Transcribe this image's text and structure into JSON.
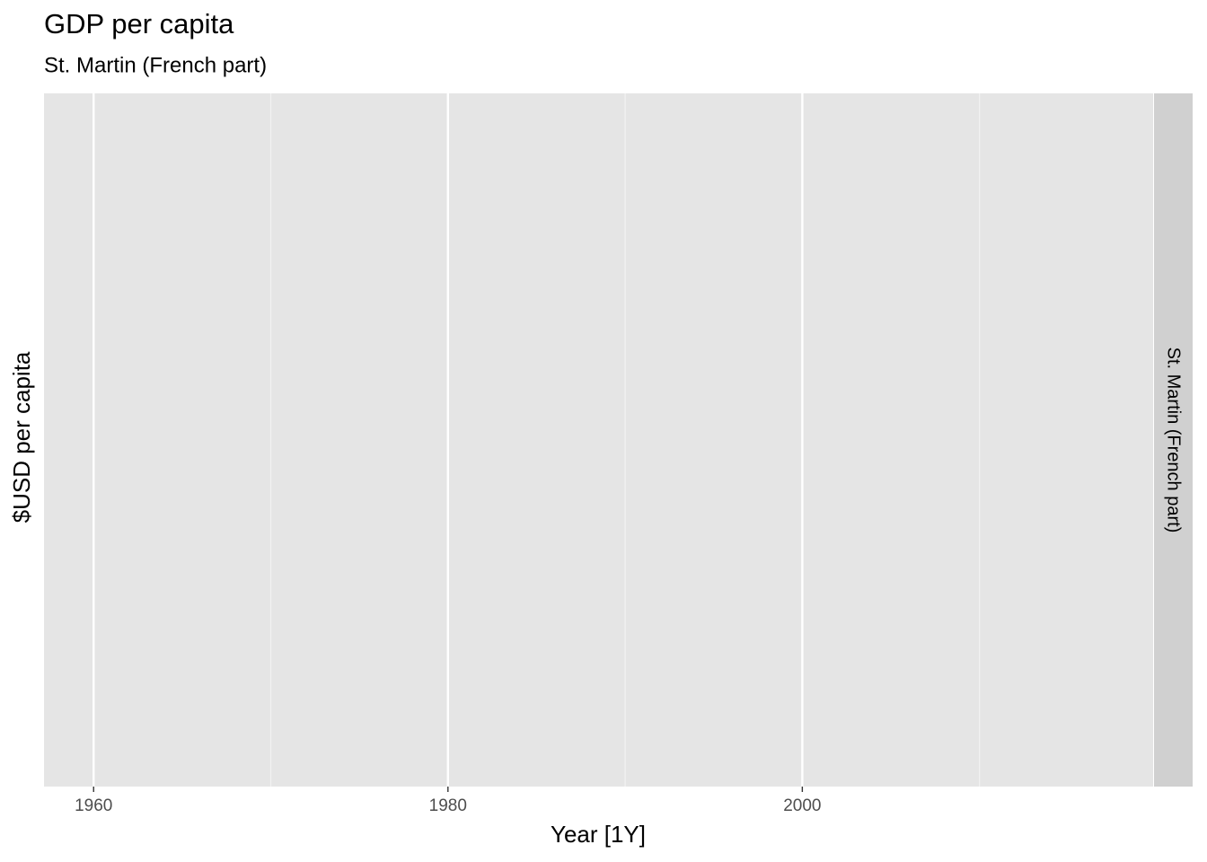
{
  "chart_data": {
    "type": "line",
    "title": "GDP per capita",
    "subtitle": "St. Martin (French part)",
    "xlabel": "Year [1Y]",
    "ylabel": "$USD per capita",
    "facet": "St. Martin (French part)",
    "x": [],
    "values": [],
    "color": "#000000",
    "xlim": [
      1957.2,
      2019.8
    ],
    "xticks": [
      1960,
      1980,
      2000
    ],
    "xminor": [
      1970,
      1990,
      2010
    ],
    "grid": true
  }
}
